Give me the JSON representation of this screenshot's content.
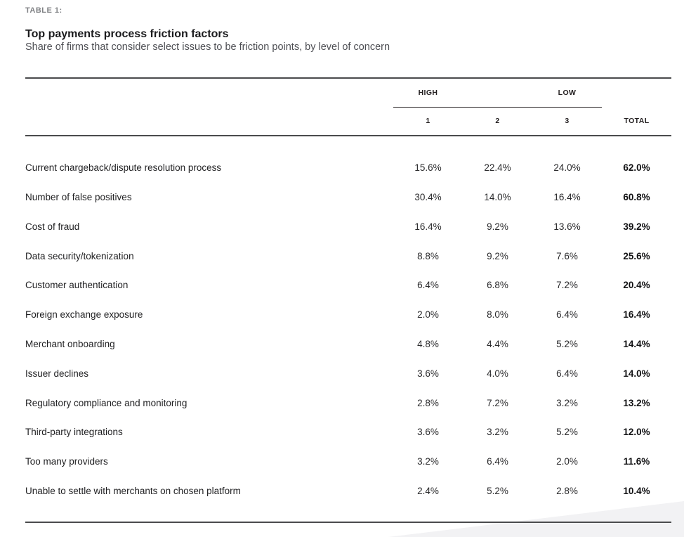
{
  "page": {
    "eyebrow": "TABLE 1:",
    "title": "Top payments process friction factors",
    "subtitle": "Share of firms that consider select issues to be friction points, by level of concern"
  },
  "colors": {
    "rule": "#4a4b4d",
    "eyebrow_gray": "#808285",
    "subtitle_gray": "#4d4e53",
    "swoosh_gray": "#f2f2f4",
    "text_black": "#1f1f21"
  },
  "table": {
    "group_headers": {
      "high": "HIGH",
      "low": "LOW"
    },
    "columns": {
      "c1": "1",
      "c2": "2",
      "c3": "3",
      "total": "TOTAL"
    },
    "rows": [
      {
        "label": "Current chargeback/dispute resolution process",
        "values": [
          "15.6%",
          "22.4%",
          "24.0%"
        ],
        "total": "62.0%"
      },
      {
        "label": "Number of false positives",
        "values": [
          "30.4%",
          "14.0%",
          "16.4%"
        ],
        "total": "60.8%"
      },
      {
        "label": "Cost of fraud",
        "values": [
          "16.4%",
          "9.2%",
          "13.6%"
        ],
        "total": "39.2%"
      },
      {
        "label": "Data security/tokenization",
        "values": [
          "8.8%",
          "9.2%",
          "7.6%"
        ],
        "total": "25.6%"
      },
      {
        "label": "Customer authentication",
        "values": [
          "6.4%",
          "6.8%",
          "7.2%"
        ],
        "total": "20.4%"
      },
      {
        "label": "Foreign exchange exposure",
        "values": [
          "2.0%",
          "8.0%",
          "6.4%"
        ],
        "total": "16.4%"
      },
      {
        "label": "Merchant onboarding",
        "values": [
          "4.8%",
          "4.4%",
          "5.2%"
        ],
        "total": "14.4%"
      },
      {
        "label": "Issuer declines",
        "values": [
          "3.6%",
          "4.0%",
          "6.4%"
        ],
        "total": "14.0%"
      },
      {
        "label": "Regulatory compliance and monitoring",
        "values": [
          "2.8%",
          "7.2%",
          "3.2%"
        ],
        "total": "13.2%"
      },
      {
        "label": "Third-party integrations",
        "values": [
          "3.6%",
          "3.2%",
          "5.2%"
        ],
        "total": "12.0%"
      },
      {
        "label": "Too many providers",
        "values": [
          "3.2%",
          "6.4%",
          "2.0%"
        ],
        "total": "11.6%"
      },
      {
        "label": "Unable to settle with merchants on chosen platform",
        "values": [
          "2.4%",
          "5.2%",
          "2.8%"
        ],
        "total": "10.4%"
      }
    ]
  }
}
